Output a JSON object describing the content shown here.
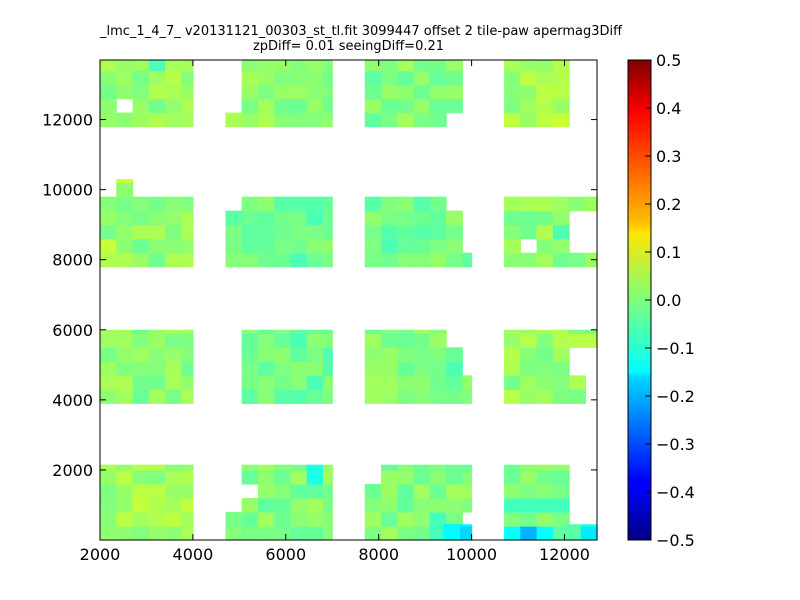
{
  "chart_data": {
    "type": "heatmap",
    "title_line1": "_lmc_1_4_7_ v20131121_00303_st_tl.fit 3099447 offset 2 tile-paw apermag3Diff",
    "title_line2": "zpDiff= 0.01 seeingDiff=0.21",
    "xlim": [
      2000,
      12700
    ],
    "ylim": [
      0,
      13700
    ],
    "x_ticks": [
      "2000",
      "4000",
      "6000",
      "8000",
      "10000",
      "12000"
    ],
    "y_ticks": [
      "2000",
      "4000",
      "6000",
      "8000",
      "10000",
      "12000"
    ],
    "colorbar": {
      "colormap": "jet",
      "range": [
        -0.5,
        0.5
      ],
      "ticks": [
        "0.5",
        "0.4",
        "0.3",
        "0.2",
        "0.1",
        "0.0",
        "−0.1",
        "−0.2",
        "−0.3",
        "−0.4",
        "−0.5"
      ]
    },
    "cell_size": [
      350,
      400
    ],
    "default_value": 0.03,
    "regions": [
      {
        "x": [
          2000,
          4000
        ],
        "y": [
          11800,
          13700
        ],
        "value": 0.04
      },
      {
        "x": [
          2000,
          4000
        ],
        "y": [
          7800,
          9800
        ],
        "value": 0.03
      },
      {
        "x": [
          2000,
          4000
        ],
        "y": [
          3900,
          6000
        ],
        "value": 0.03
      },
      {
        "x": [
          2000,
          4000
        ],
        "y": [
          0,
          2150
        ],
        "value": 0.05
      },
      {
        "x": [
          4700,
          7000
        ],
        "y": [
          11800,
          13700
        ],
        "value": 0.03
      },
      {
        "x": [
          4700,
          7000
        ],
        "y": [
          7800,
          9800
        ],
        "value": 0.0
      },
      {
        "x": [
          5050,
          7000
        ],
        "y": [
          3900,
          6000
        ],
        "value": 0.0
      },
      {
        "x": [
          4700,
          7000
        ],
        "y": [
          0,
          2150
        ],
        "value": 0.02
      },
      {
        "x": [
          7700,
          10000
        ],
        "y": [
          11800,
          13700
        ],
        "value": 0.02
      },
      {
        "x": [
          7700,
          10000
        ],
        "y": [
          7800,
          9800
        ],
        "value": 0.01
      },
      {
        "x": [
          7700,
          10000
        ],
        "y": [
          3900,
          6000
        ],
        "value": 0.02
      },
      {
        "x": [
          7700,
          10000
        ],
        "y": [
          0,
          2150
        ],
        "value": 0.02
      },
      {
        "x": [
          10700,
          12700
        ],
        "y": [
          11800,
          13700
        ],
        "value": 0.05
      },
      {
        "x": [
          10700,
          12700
        ],
        "y": [
          7800,
          9800
        ],
        "value": 0.03
      },
      {
        "x": [
          10700,
          12700
        ],
        "y": [
          3900,
          6000
        ],
        "value": 0.04
      },
      {
        "x": [
          10700,
          12700
        ],
        "y": [
          0,
          2150
        ],
        "value": 0.01
      }
    ],
    "holes": [
      {
        "x": [
          2350,
          2700
        ],
        "y": [
          12400,
          12800
        ]
      },
      {
        "x": [
          4700,
          5050
        ],
        "y": [
          12400,
          13700
        ]
      },
      {
        "x": [
          9700,
          10000
        ],
        "y": [
          12400,
          13700
        ]
      },
      {
        "x": [
          9400,
          10000
        ],
        "y": [
          11800,
          12400
        ]
      },
      {
        "x": [
          12000,
          12700
        ],
        "y": [
          12000,
          13700
        ]
      },
      {
        "x": [
          12400,
          12700
        ],
        "y": [
          11800,
          12000
        ]
      },
      {
        "x": [
          2000,
          4000
        ],
        "y": [
          9800,
          10300
        ]
      },
      {
        "x": [
          4700,
          5050
        ],
        "y": [
          9400,
          9800
        ]
      },
      {
        "x": [
          9400,
          10000
        ],
        "y": [
          9400,
          9800
        ]
      },
      {
        "x": [
          9700,
          10000
        ],
        "y": [
          8200,
          9400
        ]
      },
      {
        "x": [
          12000,
          12700
        ],
        "y": [
          8200,
          9400
        ]
      },
      {
        "x": [
          11100,
          11400
        ],
        "y": [
          8200,
          8600
        ]
      },
      {
        "x": [
          9400,
          10000
        ],
        "y": [
          5650,
          6000
        ]
      },
      {
        "x": [
          9700,
          10000
        ],
        "y": [
          4600,
          5650
        ]
      },
      {
        "x": [
          12000,
          12700
        ],
        "y": [
          4600,
          5650
        ]
      },
      {
        "x": [
          12400,
          12700
        ],
        "y": [
          3900,
          4600
        ]
      },
      {
        "x": [
          5050,
          5400
        ],
        "y": [
          1050,
          1800
        ]
      },
      {
        "x": [
          4700,
          5050
        ],
        "y": [
          800,
          2150
        ]
      },
      {
        "x": [
          7700,
          8050
        ],
        "y": [
          1800,
          2150
        ]
      },
      {
        "x": [
          9700,
          10000
        ],
        "y": [
          0,
          900
        ]
      },
      {
        "x": [
          12000,
          12700
        ],
        "y": [
          1000,
          2150
        ]
      },
      {
        "x": [
          12000,
          12700
        ],
        "y": [
          0,
          1000
        ]
      }
    ],
    "extras": [
      {
        "x": [
          2350,
          2700
        ],
        "y": [
          9800,
          10300
        ],
        "value": 0.06
      },
      {
        "x": [
          12000,
          12350
        ],
        "y": [
          0,
          450
        ],
        "value": 0.01
      },
      {
        "x": [
          9400,
          10000
        ],
        "y": [
          0,
          450
        ],
        "value": -0.12
      },
      {
        "x": [
          12350,
          12700
        ],
        "y": [
          0,
          450
        ],
        "value": -0.1
      }
    ],
    "highlights": [
      {
        "x": [
          3050,
          3400
        ],
        "y": [
          13300,
          13700
        ],
        "value": -0.05
      },
      {
        "x": [
          2000,
          2350
        ],
        "y": [
          8200,
          8600
        ],
        "value": 0.07
      },
      {
        "x": [
          8050,
          8400
        ],
        "y": [
          8200,
          8600
        ],
        "value": -0.05
      },
      {
        "x": [
          11750,
          12000
        ],
        "y": [
          8600,
          9000
        ],
        "value": -0.05
      },
      {
        "x": [
          6350,
          6700
        ],
        "y": [
          1800,
          2150
        ],
        "value": -0.1
      },
      {
        "x": [
          9400,
          10000
        ],
        "y": [
          4600,
          5300
        ],
        "value": -0.05
      },
      {
        "x": [
          10700,
          11050
        ],
        "y": [
          0,
          450
        ],
        "value": -0.12
      },
      {
        "x": [
          11050,
          11400
        ],
        "y": [
          0,
          450
        ],
        "value": -0.2
      },
      {
        "x": [
          11400,
          11750
        ],
        "y": [
          0,
          450
        ],
        "value": -0.12
      },
      {
        "x": [
          10700,
          12000
        ],
        "y": [
          900,
          1300
        ],
        "value": -0.06
      },
      {
        "x": [
          9050,
          9400
        ],
        "y": [
          0,
          800
        ],
        "value": -0.06
      },
      {
        "x": [
          11750,
          12000
        ],
        "y": [
          11800,
          12400
        ],
        "value": 0.07
      }
    ]
  }
}
